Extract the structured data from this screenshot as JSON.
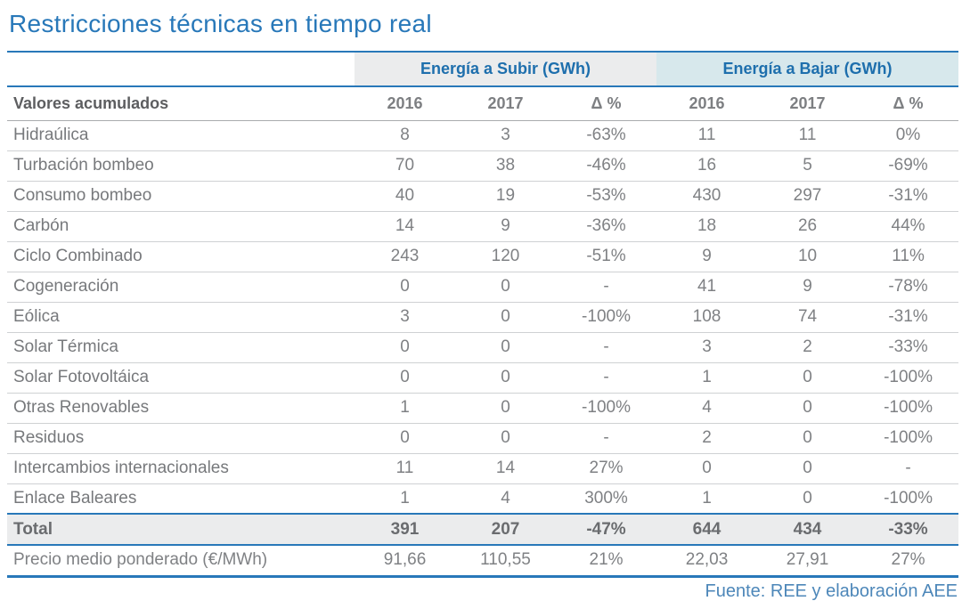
{
  "title": "Restricciones técnicas en tiempo real",
  "footer": {
    "source": "Fuente: REE y elaboración AEE"
  },
  "colors": {
    "accent_blue": "#2878b9",
    "header_text_blue": "#1e6fad",
    "group_subir_bg": "#ebeced",
    "group_bajar_bg": "#d7e8ec",
    "body_text_gray": "#7f8184"
  },
  "chart_data": {
    "type": "table",
    "title": "Restricciones técnicas en tiempo real",
    "column_groups": [
      {
        "label": "Energía a Subir (GWh)",
        "span": 3
      },
      {
        "label": "Energía a Bajar (GWh)",
        "span": 3
      }
    ],
    "row_header": "Valores acumulados",
    "columns": [
      "2016",
      "2017",
      "Δ %",
      "2016",
      "2017",
      "Δ %"
    ],
    "rows": [
      {
        "label": "Hidraúlica",
        "values": [
          "8",
          "3",
          "-63%",
          "11",
          "11",
          "0%"
        ]
      },
      {
        "label": "Turbación bombeo",
        "values": [
          "70",
          "38",
          "-46%",
          "16",
          "5",
          "-69%"
        ]
      },
      {
        "label": "Consumo bombeo",
        "values": [
          "40",
          "19",
          "-53%",
          "430",
          "297",
          "-31%"
        ]
      },
      {
        "label": "Carbón",
        "values": [
          "14",
          "9",
          "-36%",
          "18",
          "26",
          "44%"
        ]
      },
      {
        "label": "Ciclo Combinado",
        "values": [
          "243",
          "120",
          "-51%",
          "9",
          "10",
          "11%"
        ]
      },
      {
        "label": "Cogeneración",
        "values": [
          "0",
          "0",
          "-",
          "41",
          "9",
          "-78%"
        ]
      },
      {
        "label": "Eólica",
        "values": [
          "3",
          "0",
          "-100%",
          "108",
          "74",
          "-31%"
        ]
      },
      {
        "label": "Solar Térmica",
        "values": [
          "0",
          "0",
          "-",
          "3",
          "2",
          "-33%"
        ]
      },
      {
        "label": "Solar Fotovoltáica",
        "values": [
          "0",
          "0",
          "-",
          "1",
          "0",
          "-100%"
        ]
      },
      {
        "label": "Otras Renovables",
        "values": [
          "1",
          "0",
          "-100%",
          "4",
          "0",
          "-100%"
        ]
      },
      {
        "label": "Residuos",
        "values": [
          "0",
          "0",
          "-",
          "2",
          "0",
          "-100%"
        ]
      },
      {
        "label": "Intercambios internacionales",
        "values": [
          "11",
          "14",
          "27%",
          "0",
          "0",
          "-"
        ]
      },
      {
        "label": "Enlace Baleares",
        "values": [
          "1",
          "4",
          "300%",
          "1",
          "0",
          "-100%"
        ]
      }
    ],
    "total": {
      "label": "Total",
      "values": [
        "391",
        "207",
        "-47%",
        "644",
        "434",
        "-33%"
      ]
    },
    "price": {
      "label": "Precio medio ponderado (€/MWh)",
      "values": [
        "91,66",
        "110,55",
        "21%",
        "22,03",
        "27,91",
        "27%"
      ]
    }
  }
}
